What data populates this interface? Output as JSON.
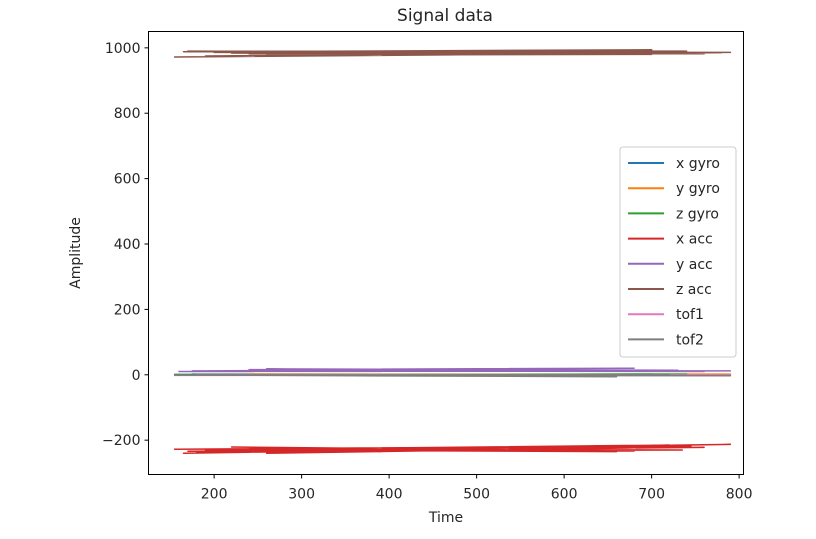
{
  "chart_data": {
    "type": "line",
    "title": "Signal data",
    "xlabel": "Time",
    "ylabel": "Amplitude",
    "xlim": [
      125,
      805
    ],
    "ylim": [
      -305,
      1050
    ],
    "xticks": [
      200,
      300,
      400,
      500,
      600,
      700,
      800
    ],
    "yticks": [
      -200,
      0,
      200,
      400,
      600,
      800,
      1000
    ],
    "xtick_labels": [
      "200",
      "300",
      "400",
      "500",
      "600",
      "700",
      "800"
    ],
    "ytick_labels": [
      "−200",
      "0",
      "200",
      "400",
      "600",
      "800",
      "1000"
    ],
    "grid": false,
    "legend_position": "center-right",
    "series": [
      {
        "name": "x gyro",
        "color": "#1f77b4",
        "x": [
          155,
          790,
          175,
          770,
          230,
          700
        ],
        "y": [
          1,
          0,
          2,
          1,
          0,
          2
        ]
      },
      {
        "name": "y gyro",
        "color": "#ff7f0e",
        "x": [
          155,
          790,
          180,
          760,
          240,
          690
        ],
        "y": [
          0,
          2,
          1,
          0,
          2,
          1
        ]
      },
      {
        "name": "z gyro",
        "color": "#2ca02c",
        "x": [
          155,
          790,
          200,
          740,
          260,
          710
        ],
        "y": [
          1,
          -1,
          0,
          2,
          -1,
          1
        ]
      },
      {
        "name": "x acc",
        "color": "#d62728",
        "x": [
          155,
          710,
          165,
          790,
          180,
          760,
          200,
          745,
          240,
          735,
          170,
          700,
          260,
          720,
          190,
          680,
          220,
          660,
          300,
          640
        ],
        "y": [
          -228,
          -218,
          -240,
          -213,
          -236,
          -222,
          -232,
          -218,
          -226,
          -230,
          -234,
          -222,
          -240,
          -215,
          -229,
          -233,
          -221,
          -235,
          -231,
          -217
        ]
      },
      {
        "name": "y acc",
        "color": "#9467bd",
        "x": [
          160,
          790,
          175,
          760,
          240,
          680,
          190,
          730,
          260,
          700
        ],
        "y": [
          10,
          12,
          12,
          10,
          16,
          20,
          12,
          14,
          18,
          11
        ]
      },
      {
        "name": "z acc",
        "color": "#8c564b",
        "x": [
          155,
          780,
          170,
          710,
          190,
          650,
          200,
          790,
          220,
          760,
          240,
          700,
          260,
          740,
          165,
          700
        ],
        "y": [
          972,
          985,
          990,
          985,
          975,
          982,
          986,
          986,
          984,
          982,
          982,
          980,
          978,
          990,
          988,
          994
        ]
      },
      {
        "name": "tof1",
        "color": "#e377c2",
        "x": [
          155,
          790,
          200,
          760
        ],
        "y": [
          -2,
          -1,
          0,
          -2
        ]
      },
      {
        "name": "tof2",
        "color": "#7f7f7f",
        "x": [
          155,
          790,
          180,
          660,
          250,
          720
        ],
        "y": [
          -1,
          -3,
          0,
          -6,
          -2,
          0
        ]
      }
    ]
  }
}
